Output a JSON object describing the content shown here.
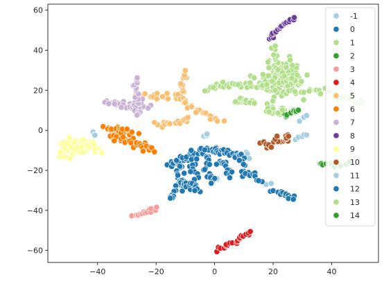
{
  "chart_data": {
    "type": "scatter",
    "title": "",
    "xlabel": "",
    "ylabel": "",
    "xlim": [
      -57,
      56
    ],
    "ylim": [
      -66,
      63
    ],
    "xticks": [
      -40,
      -20,
      0,
      20,
      40
    ],
    "yticks": [
      -60,
      -40,
      -20,
      0,
      20,
      40,
      60
    ],
    "grid": false,
    "legend_position": "top-right",
    "series": [
      {
        "name": "-1",
        "color": "#a6cee3",
        "clusters": [
          {
            "path": [
              [
                -41.5,
                -1
              ],
              [
                -41,
                -2.5
              ]
            ],
            "n": 4,
            "spread": 0.4
          },
          {
            "path": [
              [
                -3,
                -3
              ],
              [
                -2,
                -2
              ]
            ],
            "n": 4,
            "spread": 0.5
          },
          {
            "path": [
              [
                28,
                -4
              ],
              [
                31,
                -2
              ]
            ],
            "n": 5,
            "spread": 0.5
          },
          {
            "path": [
              [
                29,
                5
              ],
              [
                31,
                7
              ]
            ],
            "n": 3,
            "spread": 0.4
          },
          {
            "path": [
              [
                11,
                -11
              ],
              [
                12,
                -13
              ]
            ],
            "n": 3,
            "spread": 0.4
          },
          {
            "path": [
              [
                18,
                -27
              ],
              [
                19,
                -26
              ]
            ],
            "n": 2,
            "spread": 0.3
          },
          {
            "path": [
              [
                1,
                -24
              ]
            ],
            "n": 2,
            "spread": 0.3
          }
        ]
      },
      {
        "name": "0",
        "color": "#1f78b4",
        "clusters": [
          {
            "path": [
              [
                -15,
                -18
              ],
              [
                -10,
                -14
              ],
              [
                -6,
                -11
              ],
              [
                -3,
                -10
              ]
            ],
            "n": 40,
            "spread": 0.9
          },
          {
            "path": [
              [
                -12,
                -18
              ],
              [
                -12,
                -26
              ],
              [
                -13,
                -30
              ],
              [
                -16,
                -34
              ]
            ],
            "n": 24,
            "spread": 0.9
          },
          {
            "path": [
              [
                -12,
                -26
              ],
              [
                -9,
                -28
              ],
              [
                -6,
                -30
              ]
            ],
            "n": 16,
            "spread": 0.8
          },
          {
            "path": [
              [
                -7,
                -14
              ],
              [
                -7,
                -22
              ],
              [
                -7,
                -30
              ]
            ],
            "n": 18,
            "spread": 0.8
          },
          {
            "path": [
              [
                -3,
                -10
              ],
              [
                0,
                -10
              ],
              [
                5,
                -11
              ],
              [
                9,
                -13
              ]
            ],
            "n": 30,
            "spread": 0.9
          },
          {
            "path": [
              [
                -2,
                -13
              ],
              [
                -2,
                -20
              ],
              [
                -1,
                -26
              ]
            ],
            "n": 18,
            "spread": 0.8
          },
          {
            "path": [
              [
                2,
                -15
              ],
              [
                4,
                -19
              ],
              [
                6,
                -22
              ]
            ],
            "n": 16,
            "spread": 0.8
          },
          {
            "path": [
              [
                8,
                -20
              ],
              [
                12,
                -22
              ],
              [
                15,
                -25
              ]
            ],
            "n": 14,
            "spread": 0.8
          },
          {
            "path": [
              [
                9,
                -13
              ],
              [
                10,
                -17
              ]
            ],
            "n": 8,
            "spread": 0.7
          },
          {
            "path": [
              [
                20,
                -30
              ],
              [
                24,
                -32
              ],
              [
                27,
                -34
              ]
            ],
            "n": 14,
            "spread": 0.6
          }
        ]
      },
      {
        "name": "1",
        "color": "#b2df8a",
        "clusters": [
          {
            "path": [
              [
                18,
                22
              ],
              [
                22,
                28
              ],
              [
                24,
                32
              ],
              [
                22,
                25
              ],
              [
                26,
                20
              ]
            ],
            "n": 110,
            "spread": 3.0
          },
          {
            "path": [
              [
                -2,
                21
              ],
              [
                4,
                23
              ],
              [
                10,
                23
              ],
              [
                16,
                22
              ],
              [
                20,
                22
              ]
            ],
            "n": 50,
            "spread": 1.2
          },
          {
            "path": [
              [
                7,
                14
              ],
              [
                10,
                15
              ],
              [
                13,
                13
              ]
            ],
            "n": 16,
            "spread": 0.8
          },
          {
            "path": [
              [
                18,
                12
              ],
              [
                20,
                9
              ],
              [
                22,
                8
              ],
              [
                25,
                10
              ]
            ],
            "n": 24,
            "spread": 1.0
          },
          {
            "path": [
              [
                26,
                20
              ],
              [
                32,
                19
              ],
              [
                38,
                19
              ],
              [
                44,
                17
              ],
              [
                50,
                13
              ]
            ],
            "n": 34,
            "spread": 0.8
          },
          {
            "path": [
              [
                22,
                32
              ],
              [
                21,
                38
              ],
              [
                20,
                42
              ]
            ],
            "n": 10,
            "spread": 0.6
          },
          {
            "path": [
              [
                22,
                30
              ],
              [
                26,
                27
              ],
              [
                30,
                26
              ]
            ],
            "n": 20,
            "spread": 1.2
          }
        ]
      },
      {
        "name": "2",
        "color": "#33a02c",
        "clusters": [
          {
            "path": [
              [
                24,
                7
              ],
              [
                27,
                9
              ],
              [
                29,
                10
              ]
            ],
            "n": 10,
            "spread": 0.5
          },
          {
            "path": [
              [
                36,
                -16
              ],
              [
                40,
                -17
              ],
              [
                43,
                -18
              ]
            ],
            "n": 10,
            "spread": 0.4
          },
          {
            "path": [
              [
                45,
                -17
              ],
              [
                46,
                -16
              ]
            ],
            "n": 3,
            "spread": 0.3
          }
        ]
      },
      {
        "name": "3",
        "color": "#fb9a99",
        "clusters": [
          {
            "path": [
              [
                -28,
                -43
              ],
              [
                -24,
                -41
              ],
              [
                -20,
                -39
              ]
            ],
            "n": 14,
            "spread": 0.4
          }
        ]
      },
      {
        "name": "4",
        "color": "#e31a1c",
        "clusters": [
          {
            "path": [
              [
                1,
                -59
              ],
              [
                5,
                -57
              ],
              [
                9,
                -54
              ],
              [
                12,
                -51
              ]
            ],
            "n": 20,
            "spread": 0.4
          }
        ]
      },
      {
        "name": "5",
        "color": "#fdbf6f",
        "clusters": [
          {
            "path": [
              [
                -28,
                17
              ],
              [
                -22,
                17
              ],
              [
                -16,
                17
              ],
              [
                -12,
                18
              ]
            ],
            "n": 22,
            "spread": 0.8
          },
          {
            "path": [
              [
                -12,
                18
              ],
              [
                -11,
                24
              ],
              [
                -10,
                29
              ]
            ],
            "n": 12,
            "spread": 0.6
          },
          {
            "path": [
              [
                -12,
                18
              ],
              [
                -10,
                12
              ],
              [
                -5,
                9
              ],
              [
                0,
                6
              ],
              [
                2,
                4
              ]
            ],
            "n": 26,
            "spread": 0.8
          },
          {
            "path": [
              [
                -20,
                3
              ],
              [
                -16,
                3
              ],
              [
                -12,
                4
              ],
              [
                -9,
                6
              ]
            ],
            "n": 16,
            "spread": 0.8
          }
        ]
      },
      {
        "name": "6",
        "color": "#ff7f00",
        "clusters": [
          {
            "path": [
              [
                -37,
                1
              ],
              [
                -32,
                0
              ],
              [
                -28,
                -1
              ]
            ],
            "n": 24,
            "spread": 1.0
          },
          {
            "path": [
              [
                -36,
                -3
              ],
              [
                -31,
                -4
              ],
              [
                -27,
                -6
              ],
              [
                -24,
                -8
              ],
              [
                -21,
                -11
              ]
            ],
            "n": 34,
            "spread": 1.0
          }
        ]
      },
      {
        "name": "7",
        "color": "#cab2d6",
        "clusters": [
          {
            "path": [
              [
                -36,
                14
              ],
              [
                -33,
                13
              ],
              [
                -30,
                12
              ],
              [
                -26,
                13
              ],
              [
                -23,
                12
              ]
            ],
            "n": 34,
            "spread": 1.0
          },
          {
            "path": [
              [
                -26,
                13
              ],
              [
                -26,
                20
              ],
              [
                -27,
                27
              ]
            ],
            "n": 14,
            "spread": 0.6
          },
          {
            "path": [
              [
                -27,
                11
              ],
              [
                -26,
                8
              ]
            ],
            "n": 6,
            "spread": 0.5
          }
        ]
      },
      {
        "name": "8",
        "color": "#6a3d9a",
        "clusters": [
          {
            "path": [
              [
                19,
                45
              ],
              [
                20,
                49
              ],
              [
                23,
                52
              ],
              [
                27,
                56
              ]
            ],
            "n": 20,
            "spread": 0.5
          }
        ]
      },
      {
        "name": "9",
        "color": "#ffff99",
        "clusters": [
          {
            "path": [
              [
                -53,
                -12
              ],
              [
                -50,
                -9
              ],
              [
                -47,
                -7
              ],
              [
                -44,
                -8
              ],
              [
                -42,
                -10
              ]
            ],
            "n": 70,
            "spread": 1.8
          }
        ]
      },
      {
        "name": "10",
        "color": "#b15928",
        "clusters": [
          {
            "path": [
              [
                17,
                -7
              ],
              [
                20,
                -6
              ],
              [
                23,
                -5
              ],
              [
                25,
                -3
              ]
            ],
            "n": 28,
            "spread": 1.1
          }
        ]
      },
      {
        "name": "11",
        "color": "#a6cee3",
        "clusters": []
      },
      {
        "name": "12",
        "color": "#1f78b4",
        "clusters": []
      },
      {
        "name": "13",
        "color": "#b2df8a",
        "clusters": []
      },
      {
        "name": "14",
        "color": "#33a02c",
        "clusters": []
      }
    ]
  }
}
